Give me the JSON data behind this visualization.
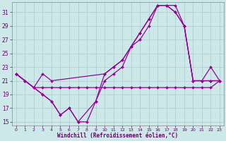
{
  "xlabel": "Windchill (Refroidissement éolien,°C)",
  "bg_color": "#cce8e8",
  "grid_color": "#aacccc",
  "line_color": "#990099",
  "xlim": [
    -0.5,
    23.5
  ],
  "ylim": [
    14.5,
    32.5
  ],
  "yticks": [
    15,
    17,
    19,
    21,
    23,
    25,
    27,
    29,
    31
  ],
  "xticks": [
    0,
    1,
    2,
    3,
    4,
    5,
    6,
    7,
    8,
    9,
    10,
    11,
    12,
    13,
    14,
    15,
    16,
    17,
    18,
    19,
    20,
    21,
    22,
    23
  ],
  "series": [
    {
      "x": [
        0,
        1,
        2,
        3,
        4,
        5,
        6,
        7,
        8,
        9,
        10,
        11,
        12,
        13,
        14,
        15,
        16,
        17,
        18,
        19,
        20,
        21,
        22,
        23
      ],
      "y": [
        22,
        21,
        20,
        19,
        18,
        16,
        17,
        15,
        15,
        18,
        21,
        22,
        23,
        26,
        27,
        29,
        32,
        32,
        31,
        29,
        21,
        21,
        21,
        21
      ]
    },
    {
      "x": [
        0,
        1,
        2,
        3,
        4,
        5,
        6,
        7,
        8,
        9,
        10,
        11,
        12,
        13,
        14,
        15,
        16,
        17,
        18,
        19,
        20,
        21,
        22,
        23
      ],
      "y": [
        22,
        21,
        20,
        20,
        20,
        20,
        20,
        20,
        20,
        20,
        20,
        20,
        20,
        20,
        20,
        20,
        20,
        20,
        20,
        20,
        20,
        20,
        20,
        21
      ]
    },
    {
      "x": [
        0,
        1,
        2,
        3,
        4,
        5,
        6,
        7,
        9,
        10,
        11,
        12,
        13,
        14,
        15,
        16,
        17,
        18,
        19,
        20,
        21,
        22,
        23
      ],
      "y": [
        22,
        21,
        20,
        19,
        18,
        16,
        17,
        15,
        18,
        22,
        23,
        24,
        26,
        28,
        30,
        32,
        32,
        32,
        29,
        21,
        21,
        23,
        21
      ]
    },
    {
      "x": [
        0,
        1,
        2,
        3,
        4,
        10,
        11,
        12,
        13,
        14,
        15,
        16,
        17,
        18,
        19,
        20,
        21,
        22,
        23
      ],
      "y": [
        22,
        21,
        20,
        22,
        21,
        22,
        23,
        24,
        26,
        28,
        30,
        32,
        32,
        31,
        29,
        21,
        21,
        21,
        21
      ]
    }
  ]
}
